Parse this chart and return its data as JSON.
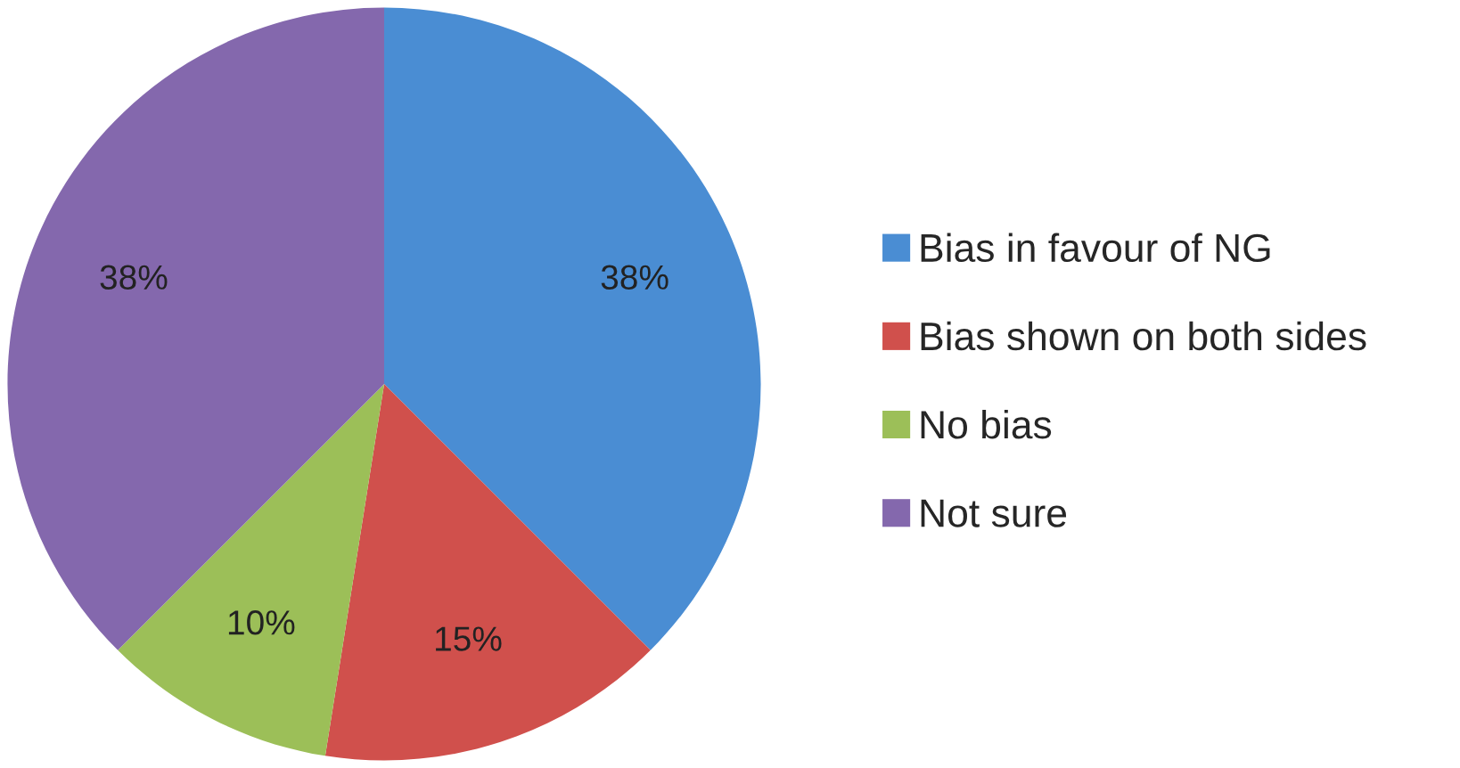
{
  "chart_data": {
    "type": "pie",
    "categories": [
      "Bias in favour of NG",
      "Bias shown on both sides",
      "No bias",
      "Not sure"
    ],
    "values": [
      37.5,
      15,
      10,
      37.5
    ],
    "value_labels": [
      "38%",
      "15%",
      "10%",
      "38%"
    ],
    "colors": [
      "#4a8dd3",
      "#d0504c",
      "#9cbf58",
      "#8468ad"
    ],
    "legend": "right"
  }
}
